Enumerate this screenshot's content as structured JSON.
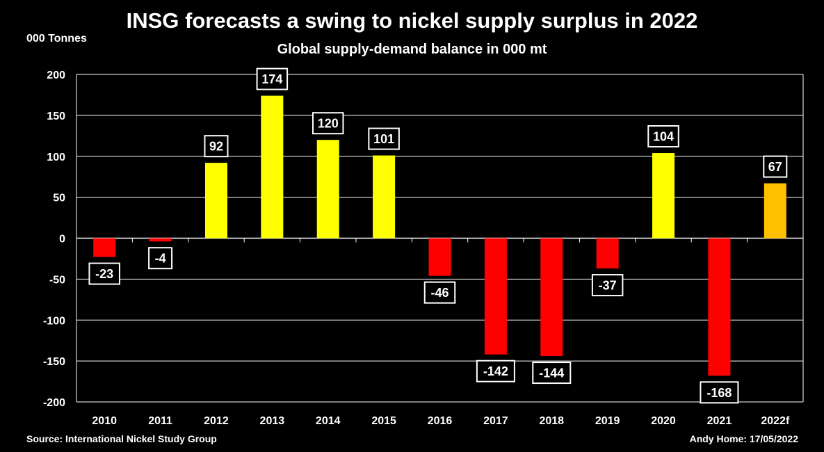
{
  "chart_data": {
    "type": "bar",
    "title": "INSG forecasts a swing to nickel supply surplus in 2022",
    "subtitle": "Global supply-demand balance in 000 mt",
    "ylabel": "000 Tonnes",
    "xlabel": "",
    "categories": [
      "2010",
      "2011",
      "2012",
      "2013",
      "2014",
      "2015",
      "2016",
      "2017",
      "2018",
      "2019",
      "2020",
      "2021",
      "2022f"
    ],
    "values": [
      -23,
      -4,
      92,
      174,
      120,
      101,
      -46,
      -142,
      -144,
      -37,
      104,
      -168,
      67
    ],
    "data_labels": [
      "-23",
      "-4",
      "92",
      "174",
      "120",
      "101",
      "-46",
      "-142",
      "-144",
      "-37",
      "104",
      "-168",
      "67"
    ],
    "ylim": [
      -200,
      200
    ],
    "yticks": [
      200,
      150,
      100,
      50,
      0,
      -50,
      -100,
      -150,
      -200
    ],
    "grid": true,
    "legend": "none",
    "colors": {
      "surplus": "#FFFF00",
      "deficit": "#FF0000",
      "forecast": "#FFC000",
      "background": "#000000",
      "grid": "#FFFFFF"
    },
    "source": "Source: International Nickel Study Group",
    "credit": "Andy Home: 17/05/2022"
  }
}
